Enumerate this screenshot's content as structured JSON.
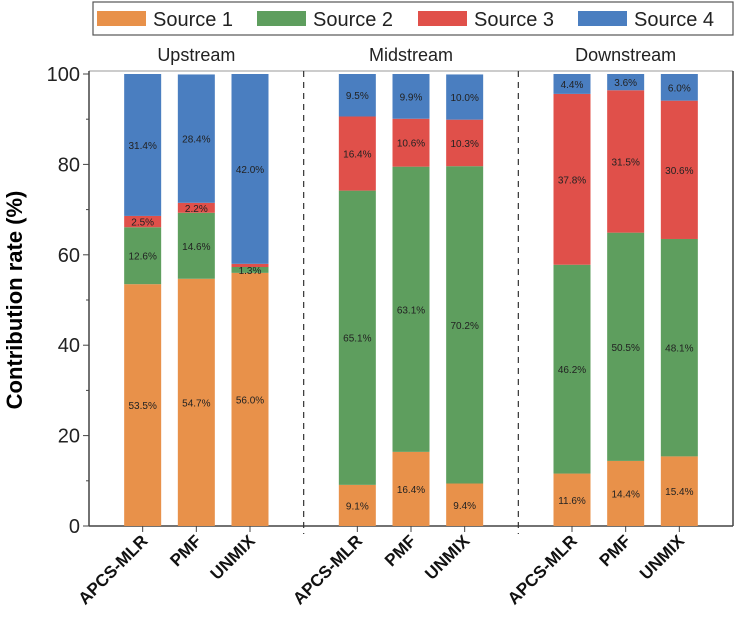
{
  "chart_data": {
    "type": "bar",
    "stacked": true,
    "ylabel": "Contribution rate (%)",
    "xlabel": "",
    "ylim": [
      0,
      100
    ],
    "yticks": [
      0,
      20,
      40,
      60,
      80,
      100
    ],
    "grid": false,
    "legend_position": "top",
    "colors": {
      "Source 1": "#E8914A",
      "Source 2": "#5E9E5E",
      "Source 3": "#E0504A",
      "Source 4": "#4A7EC0"
    },
    "groups": [
      {
        "name": "Upstream",
        "categories": [
          "APCS-MLR",
          "PMF",
          "UNMIX"
        ],
        "series": [
          {
            "name": "Source 1",
            "values": [
              53.5,
              54.7,
              56.0
            ]
          },
          {
            "name": "Source 2",
            "values": [
              12.6,
              14.6,
              1.3
            ]
          },
          {
            "name": "Source 3",
            "values": [
              2.5,
              2.2,
              0.7
            ]
          },
          {
            "name": "Source 4",
            "values": [
              31.4,
              28.4,
              42.0
            ]
          }
        ]
      },
      {
        "name": "Midstream",
        "categories": [
          "APCS-MLR",
          "PMF",
          "UNMIX"
        ],
        "series": [
          {
            "name": "Source 1",
            "values": [
              9.1,
              16.4,
              9.4
            ]
          },
          {
            "name": "Source 2",
            "values": [
              65.1,
              63.1,
              70.2
            ]
          },
          {
            "name": "Source 3",
            "values": [
              16.4,
              10.6,
              10.3
            ]
          },
          {
            "name": "Source 4",
            "values": [
              9.5,
              9.9,
              10.0
            ]
          }
        ]
      },
      {
        "name": "Downstream",
        "categories": [
          "APCS-MLR",
          "PMF",
          "UNMIX"
        ],
        "series": [
          {
            "name": "Source 1",
            "values": [
              11.6,
              14.4,
              15.4
            ]
          },
          {
            "name": "Source 2",
            "values": [
              46.2,
              50.5,
              48.1
            ]
          },
          {
            "name": "Source 3",
            "values": [
              37.8,
              31.5,
              30.6
            ]
          },
          {
            "name": "Source 4",
            "values": [
              4.4,
              3.6,
              6.0
            ]
          }
        ]
      }
    ],
    "legend": [
      "Source 1",
      "Source 2",
      "Source 3",
      "Source 4"
    ]
  }
}
